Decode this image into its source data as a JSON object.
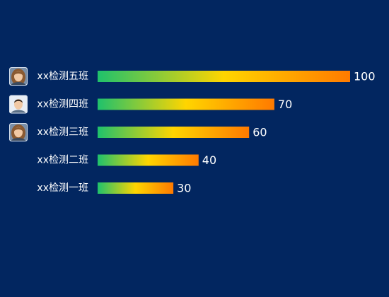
{
  "chart_data": {
    "type": "bar",
    "orientation": "horizontal",
    "categories": [
      "xx检测五班",
      "xx检测四班",
      "xx检测三班",
      "xx检测二班",
      "xx检测一班"
    ],
    "values": [
      100,
      70,
      60,
      40,
      30
    ],
    "avatars": [
      {
        "icon": "woman-avatar-icon"
      },
      {
        "icon": "man-avatar-icon"
      },
      {
        "icon": "woman-avatar-icon"
      },
      null,
      null
    ],
    "xlim": [
      0,
      100
    ],
    "grid": false,
    "legend": "none",
    "colors": {
      "background": "#022660",
      "gradient_start": "#1fc16c",
      "gradient_mid": "#ffd500",
      "gradient_end": "#ff7a00",
      "label": "#ffffff"
    }
  }
}
